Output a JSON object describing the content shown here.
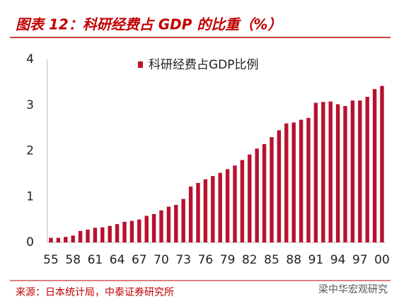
{
  "chart_data": {
    "type": "bar",
    "title": "图表 12：科研经费占 GDP 的比重（%）",
    "legend": "科研经费占GDP比例",
    "source": "来源：日本统计局，中泰证券研究所",
    "watermark": "梁中华宏观研究",
    "color": "#b8122e",
    "categories": [
      "55",
      null,
      null,
      "58",
      null,
      null,
      "61",
      null,
      null,
      "64",
      null,
      null,
      "67",
      null,
      null,
      "70",
      null,
      null,
      "73",
      null,
      null,
      "76",
      null,
      null,
      "79",
      null,
      null,
      "82",
      null,
      null,
      "85",
      null,
      null,
      "88",
      null,
      null,
      "91",
      null,
      null,
      "94",
      null,
      null,
      "97",
      null,
      null,
      "00"
    ],
    "values": [
      0.1,
      0.1,
      0.12,
      0.15,
      0.25,
      0.28,
      0.32,
      0.33,
      0.36,
      0.4,
      0.45,
      0.47,
      0.5,
      0.58,
      0.62,
      0.7,
      0.78,
      0.82,
      0.95,
      1.22,
      1.3,
      1.38,
      1.45,
      1.52,
      1.6,
      1.68,
      1.8,
      1.92,
      2.05,
      2.15,
      2.3,
      2.45,
      2.6,
      2.62,
      2.68,
      2.72,
      3.05,
      3.07,
      3.08,
      3.02,
      2.98,
      3.1,
      3.1,
      3.18,
      3.35,
      3.42
    ],
    "ylim": [
      0,
      4
    ],
    "yticks": [
      0,
      1,
      2,
      3,
      4
    ],
    "grid": false
  }
}
